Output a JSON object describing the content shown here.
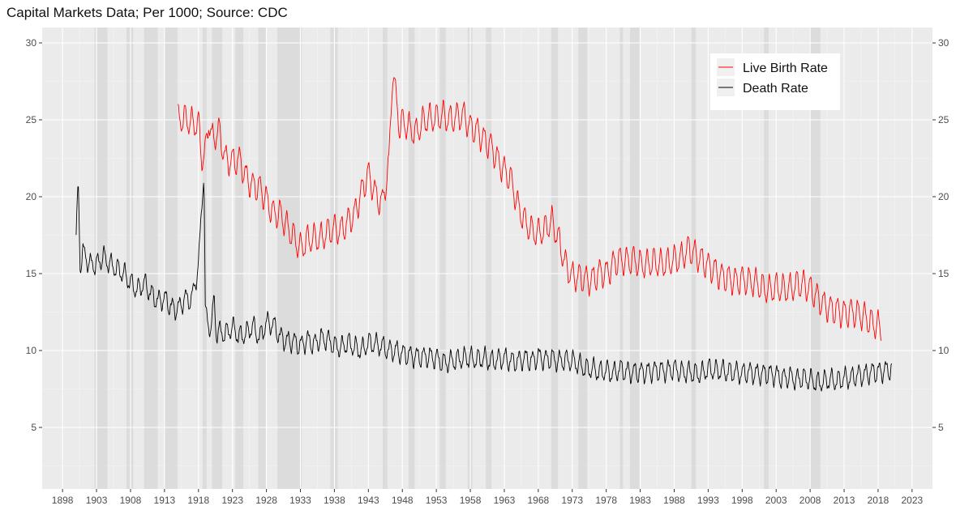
{
  "title": "Capital Markets Data; Per 1000; Source: CDC",
  "colors": {
    "panel": "#ebebeb",
    "grid_major": "#ffffff",
    "grid_minor": "#f5f5f5",
    "shade": "#d9d9d9",
    "birth": "#ff0000",
    "death": "#000000",
    "legend_key": "#f0f0f0"
  },
  "chart_data": {
    "type": "line",
    "title": "Capital Markets Data; Per 1000; Source: CDC",
    "xlim": [
      1895,
      2026
    ],
    "ylim": [
      1,
      31
    ],
    "x_ticks": [
      1898,
      1903,
      1908,
      1913,
      1918,
      1923,
      1928,
      1933,
      1938,
      1943,
      1948,
      1953,
      1958,
      1963,
      1968,
      1973,
      1978,
      1983,
      1988,
      1993,
      1998,
      2003,
      2008,
      2013,
      2018,
      2023
    ],
    "y_ticks": [
      5,
      10,
      15,
      20,
      25,
      30
    ],
    "y_axis_right": true,
    "grid": true,
    "legend_position": "top-right",
    "recession_bands": [
      [
        1902.7,
        1904.6
      ],
      [
        1907.4,
        1908.4
      ],
      [
        1910.0,
        1912.0
      ],
      [
        1913.0,
        1914.9
      ],
      [
        1918.6,
        1919.2
      ],
      [
        1920.0,
        1921.5
      ],
      [
        1923.4,
        1924.6
      ],
      [
        1926.8,
        1927.9
      ],
      [
        1929.6,
        1933.2
      ],
      [
        1937.4,
        1938.5
      ],
      [
        1945.1,
        1945.8
      ],
      [
        1948.9,
        1949.8
      ],
      [
        1953.5,
        1954.4
      ],
      [
        1957.6,
        1958.3
      ],
      [
        1960.3,
        1961.1
      ],
      [
        1969.9,
        1970.9
      ],
      [
        1973.9,
        1975.2
      ],
      [
        1980.0,
        1980.5
      ],
      [
        1981.5,
        1982.9
      ],
      [
        1990.5,
        1991.2
      ],
      [
        2001.2,
        2001.9
      ],
      [
        2007.9,
        2009.5
      ]
    ],
    "series": [
      {
        "name": "Live Birth Rate",
        "color": "#ff0000",
        "x": [
          1915.0,
          1916.0,
          1917.0,
          1918.0,
          1918.5,
          1919.0,
          1919.5,
          1920.0,
          1921.0,
          1922.0,
          1923.0,
          1924.0,
          1925.0,
          1926.0,
          1927.0,
          1928.0,
          1929.0,
          1930.0,
          1931.0,
          1932.0,
          1933.0,
          1934.0,
          1935.0,
          1936.0,
          1937.0,
          1938.0,
          1939.0,
          1940.0,
          1941.0,
          1942.0,
          1943.0,
          1944.0,
          1945.0,
          1946.0,
          1946.6,
          1947.0,
          1947.6,
          1948.0,
          1949.0,
          1950.0,
          1951.0,
          1952.0,
          1953.0,
          1954.0,
          1955.0,
          1956.0,
          1957.0,
          1958.0,
          1959.0,
          1960.0,
          1961.0,
          1962.0,
          1963.0,
          1964.0,
          1965.0,
          1966.0,
          1967.0,
          1968.0,
          1969.0,
          1970.0,
          1971.0,
          1972.0,
          1973.0,
          1974.0,
          1975.0,
          1976.0,
          1977.0,
          1978.0,
          1979.0,
          1980.0,
          1981.0,
          1982.0,
          1983.0,
          1984.0,
          1985.0,
          1986.0,
          1987.0,
          1988.0,
          1989.0,
          1990.0,
          1991.0,
          1992.0,
          1993.0,
          1994.0,
          1995.0,
          1996.0,
          1997.0,
          1998.0,
          1999.0,
          2000.0,
          2001.0,
          2002.0,
          2003.0,
          2004.0,
          2005.0,
          2006.0,
          2007.0,
          2008.0,
          2009.0,
          2010.0,
          2011.0,
          2012.0,
          2013.0,
          2014.0,
          2015.0,
          2016.0,
          2017.0,
          2018.0,
          2018.5
        ],
        "values": [
          25.0,
          25.1,
          24.8,
          24.7,
          22.5,
          22.8,
          25.0,
          23.7,
          24.3,
          22.4,
          22.3,
          22.4,
          21.3,
          20.7,
          20.6,
          19.8,
          18.9,
          18.9,
          18.1,
          17.4,
          16.6,
          17.2,
          17.3,
          17.3,
          17.7,
          17.9,
          17.8,
          18.4,
          18.9,
          20.3,
          21.5,
          20.2,
          19.5,
          22.0,
          28.5,
          26.6,
          24.5,
          24.9,
          24.5,
          24.1,
          24.9,
          25.1,
          25.1,
          25.3,
          25.0,
          25.2,
          25.3,
          24.5,
          24.3,
          23.7,
          23.3,
          22.4,
          21.7,
          21.1,
          19.4,
          18.4,
          17.8,
          17.6,
          17.9,
          18.4,
          17.2,
          15.6,
          14.8,
          14.8,
          14.6,
          14.6,
          15.1,
          15.0,
          15.6,
          15.9,
          15.8,
          15.9,
          15.6,
          15.6,
          15.8,
          15.6,
          15.7,
          15.9,
          16.0,
          16.6,
          16.3,
          15.9,
          15.5,
          15.2,
          14.8,
          14.7,
          14.5,
          14.6,
          14.5,
          14.4,
          14.1,
          13.9,
          14.1,
          14.0,
          14.0,
          14.3,
          14.3,
          14.0,
          13.5,
          13.0,
          12.7,
          12.6,
          12.4,
          12.5,
          12.4,
          12.2,
          11.8,
          11.6,
          11.3
        ]
      },
      {
        "name": "Death Rate",
        "color": "#000000",
        "x": [
          1900.0,
          1900.3,
          1900.6,
          1901.0,
          1902.0,
          1903.0,
          1904.0,
          1905.0,
          1906.0,
          1907.0,
          1908.0,
          1909.0,
          1910.0,
          1911.0,
          1912.0,
          1913.0,
          1914.0,
          1915.0,
          1916.0,
          1917.0,
          1918.0,
          1918.8,
          1919.0,
          1919.5,
          1920.0,
          1920.3,
          1920.6,
          1921.0,
          1922.0,
          1923.0,
          1924.0,
          1925.0,
          1926.0,
          1927.0,
          1928.0,
          1929.0,
          1930.0,
          1931.0,
          1932.0,
          1933.0,
          1934.0,
          1935.0,
          1936.0,
          1937.0,
          1938.0,
          1939.0,
          1940.0,
          1941.0,
          1942.0,
          1943.0,
          1944.0,
          1945.0,
          1946.0,
          1947.0,
          1948.0,
          1949.0,
          1950.0,
          1951.0,
          1952.0,
          1953.0,
          1954.0,
          1955.0,
          1956.0,
          1957.0,
          1958.0,
          1959.0,
          1960.0,
          1961.0,
          1962.0,
          1963.0,
          1964.0,
          1965.0,
          1966.0,
          1967.0,
          1968.0,
          1969.0,
          1970.0,
          1971.0,
          1972.0,
          1973.0,
          1974.0,
          1975.0,
          1976.0,
          1977.0,
          1978.0,
          1979.0,
          1980.0,
          1981.0,
          1982.0,
          1983.0,
          1984.0,
          1985.0,
          1986.0,
          1987.0,
          1988.0,
          1989.0,
          1990.0,
          1991.0,
          1992.0,
          1993.0,
          1994.0,
          1995.0,
          1996.0,
          1997.0,
          1998.0,
          1999.0,
          2000.0,
          2001.0,
          2002.0,
          2003.0,
          2004.0,
          2005.0,
          2006.0,
          2007.0,
          2008.0,
          2009.0,
          2010.0,
          2011.0,
          2012.0,
          2013.0,
          2014.0,
          2015.0,
          2016.0,
          2017.0,
          2018.0,
          2019.0,
          2020.0
        ],
        "values": [
          17.2,
          21.0,
          15.5,
          16.4,
          15.6,
          15.6,
          16.1,
          15.6,
          15.3,
          15.0,
          14.4,
          13.9,
          14.4,
          13.7,
          13.2,
          13.4,
          12.8,
          12.7,
          13.4,
          13.3,
          15.5,
          22.0,
          12.5,
          11.5,
          11.8,
          13.5,
          11.2,
          11.2,
          11.1,
          11.5,
          10.9,
          11.1,
          11.6,
          10.8,
          11.8,
          11.7,
          10.9,
          10.6,
          10.6,
          10.3,
          10.7,
          10.4,
          10.8,
          10.7,
          10.3,
          10.2,
          10.5,
          10.2,
          10.0,
          10.5,
          10.4,
          10.3,
          10.0,
          10.0,
          9.8,
          9.7,
          9.6,
          9.6,
          9.6,
          9.5,
          9.2,
          9.3,
          9.4,
          9.5,
          9.5,
          9.4,
          9.5,
          9.3,
          9.4,
          9.5,
          9.3,
          9.3,
          9.5,
          9.3,
          9.6,
          9.4,
          9.5,
          9.3,
          9.4,
          9.3,
          9.1,
          8.8,
          8.8,
          8.6,
          8.7,
          8.5,
          8.8,
          8.6,
          8.6,
          8.6,
          8.6,
          8.7,
          8.7,
          8.7,
          8.8,
          8.6,
          8.6,
          8.5,
          8.5,
          8.8,
          8.7,
          8.7,
          8.6,
          8.6,
          8.5,
          8.6,
          8.5,
          8.5,
          8.5,
          8.4,
          8.2,
          8.3,
          8.1,
          8.2,
          8.1,
          7.9,
          8.0,
          8.1,
          8.0,
          8.2,
          8.2,
          8.4,
          8.4,
          8.6,
          8.6,
          8.7,
          8.8
        ]
      }
    ]
  }
}
